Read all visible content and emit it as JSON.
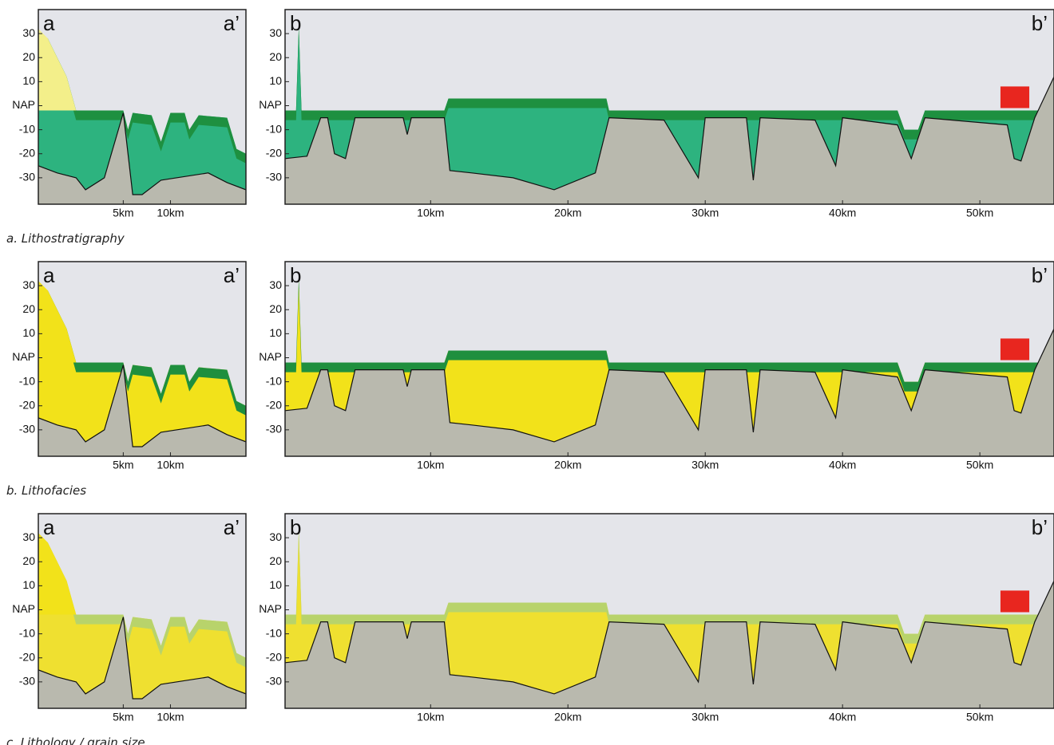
{
  "figure": {
    "rows": [
      {
        "caption": "a. Lithostratigraphy",
        "charts": [
          {
            "type": "cross-section",
            "corner_labels": [
              "a",
              "a’"
            ],
            "xlim": [
              -4,
              18
            ],
            "ylim": [
              -41,
              40
            ],
            "xticks": [
              {
                "value": 5,
                "label": "5km"
              },
              {
                "value": 10,
                "label": "10km"
              }
            ],
            "yticks": [
              30,
              20,
              10,
              {
                "value": 0,
                "label": "NAP"
              },
              -10,
              -20,
              -30
            ]
          },
          {
            "type": "cross-section",
            "corner_labels": [
              "b",
              "b’"
            ],
            "xlim": [
              -0.6,
              55.4
            ],
            "ylim": [
              -41,
              40
            ],
            "xticks": [
              {
                "value": 10,
                "label": "10km"
              },
              {
                "value": 20,
                "label": "20km"
              },
              {
                "value": 30,
                "label": "30km"
              },
              {
                "value": 40,
                "label": "40km"
              },
              {
                "value": 50,
                "label": "50km"
              }
            ],
            "yticks": [
              30,
              20,
              10,
              {
                "value": 0,
                "label": "NAP"
              },
              -10,
              -20,
              -30
            ]
          }
        ]
      },
      {
        "caption": "b. Lithofacies",
        "charts": [
          {
            "type": "cross-section",
            "corner_labels": [
              "a",
              "a’"
            ],
            "xlim": [
              -4,
              18
            ],
            "ylim": [
              -41,
              40
            ],
            "xticks": [
              {
                "value": 5,
                "label": "5km"
              },
              {
                "value": 10,
                "label": "10km"
              }
            ],
            "yticks": [
              30,
              20,
              10,
              {
                "value": 0,
                "label": "NAP"
              },
              -10,
              -20,
              -30
            ]
          },
          {
            "type": "cross-section",
            "corner_labels": [
              "b",
              "b’"
            ],
            "xlim": [
              -0.6,
              55.4
            ],
            "ylim": [
              -41,
              40
            ],
            "xticks": [
              {
                "value": 10,
                "label": "10km"
              },
              {
                "value": 20,
                "label": "20km"
              },
              {
                "value": 30,
                "label": "30km"
              },
              {
                "value": 40,
                "label": "40km"
              },
              {
                "value": 50,
                "label": "50km"
              }
            ],
            "yticks": [
              30,
              20,
              10,
              {
                "value": 0,
                "label": "NAP"
              },
              -10,
              -20,
              -30
            ]
          }
        ]
      },
      {
        "caption": "c. Lithology / grain size",
        "charts": [
          {
            "type": "cross-section",
            "corner_labels": [
              "a",
              "a’"
            ],
            "xlim": [
              -4,
              18
            ],
            "ylim": [
              -41,
              40
            ],
            "xticks": [
              {
                "value": 5,
                "label": "5km"
              },
              {
                "value": 10,
                "label": "10km"
              }
            ],
            "yticks": [
              30,
              20,
              10,
              {
                "value": 0,
                "label": "NAP"
              },
              -10,
              -20,
              -30
            ]
          },
          {
            "type": "cross-section",
            "corner_labels": [
              "b",
              "b’"
            ],
            "xlim": [
              -0.6,
              55.4
            ],
            "ylim": [
              -41,
              40
            ],
            "xticks": [
              {
                "value": 10,
                "label": "10km"
              },
              {
                "value": 20,
                "label": "20km"
              },
              {
                "value": 30,
                "label": "30km"
              },
              {
                "value": 40,
                "label": "40km"
              },
              {
                "value": 50,
                "label": "50km"
              }
            ],
            "yticks": [
              30,
              20,
              10,
              {
                "value": 0,
                "label": "NAP"
              },
              -10,
              -20,
              -30
            ]
          }
        ]
      }
    ]
  }
}
